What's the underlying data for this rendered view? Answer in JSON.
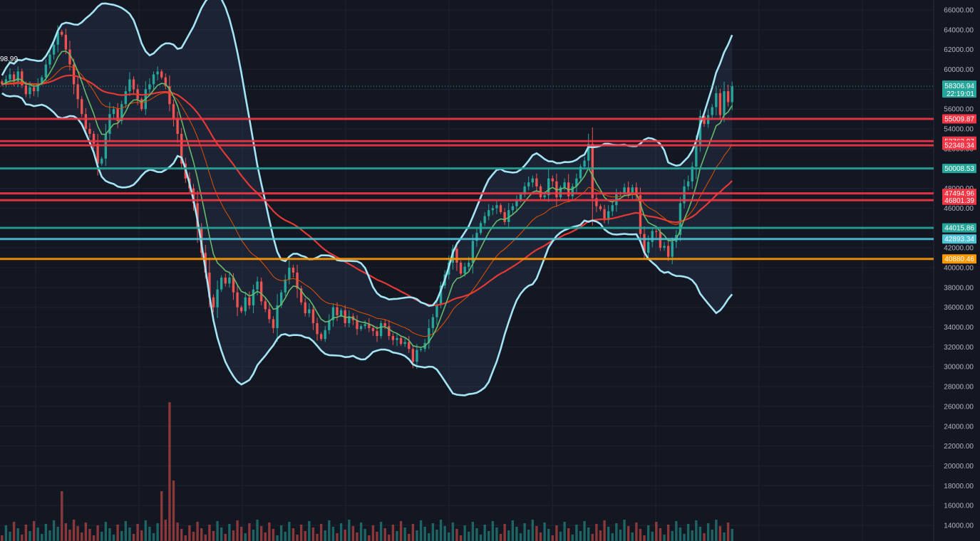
{
  "chart_data": {
    "type": "candlestick",
    "symbol_hint": "BTC",
    "y_axis": {
      "min": 12000,
      "max": 66800,
      "step": 2000
    },
    "y_tick_labels": [
      "66000.00",
      "64000.00",
      "62000.00",
      "60000.00",
      "58000.00",
      "56000.00",
      "54000.00",
      "52000.00",
      "50000.00",
      "48000.00",
      "46000.00",
      "44000.00",
      "42000.00",
      "40000.00",
      "38000.00",
      "36000.00",
      "34000.00",
      "32000.00",
      "30000.00",
      "28000.00",
      "26000.00",
      "24000.00",
      "22000.00",
      "20000.00",
      "18000.00",
      "16000.00",
      "14000.00"
    ],
    "current_price": {
      "value": 58306.94,
      "label": "58306.94",
      "countdown": "22:19:01",
      "color": "#26a69a"
    },
    "corner_label": "98.99",
    "horizontal_levels": [
      {
        "value": 55009.87,
        "label": "55009.87",
        "color": "#f23645"
      },
      {
        "value": 52763.97,
        "label": "52763.97",
        "color": "#f23645"
      },
      {
        "value": 52348.34,
        "label": "52348.34",
        "color": "#f23645"
      },
      {
        "value": 50008.53,
        "label": "50008.53",
        "color": "#26a69a"
      },
      {
        "value": 47494.96,
        "label": "47494.96",
        "color": "#f23645"
      },
      {
        "value": 46801.39,
        "label": "46801.39",
        "color": "#f23645"
      },
      {
        "value": 44015.86,
        "label": "44015.86",
        "color": "#26a69a"
      },
      {
        "value": 42893.34,
        "label": "42893.34",
        "color": "#4fc3d8"
      },
      {
        "value": 40880.46,
        "label": "40880.46",
        "color": "#ff9800"
      }
    ],
    "candles_close_approx": [
      58500,
      59000,
      59500,
      58800,
      59800,
      58400,
      57500,
      58200,
      57800,
      58600,
      59200,
      60500,
      61500,
      62500,
      63800,
      63500,
      62000,
      60500,
      58500,
      57000,
      55500,
      54000,
      53500,
      52500,
      50500,
      51000,
      53500,
      55500,
      56000,
      54800,
      56500,
      57800,
      59000,
      58000,
      57000,
      56000,
      58000,
      58500,
      59500,
      59800,
      59200,
      58300,
      56500,
      55000,
      53500,
      50500,
      49000,
      48000,
      46500,
      44000,
      41500,
      39500,
      37000,
      36000,
      37800,
      39000,
      38400,
      39000,
      37500,
      36000,
      35600,
      37000,
      36200,
      37800,
      38600,
      36600,
      35800,
      34800,
      33900,
      36200,
      37500,
      38800,
      40000,
      39500,
      37900,
      36500,
      35400,
      35800,
      34400,
      33300,
      32800,
      33700,
      34700,
      36000,
      35200,
      35700,
      34400,
      35100,
      34700,
      33800,
      34100,
      34300,
      33900,
      33600,
      33100,
      34400,
      34100,
      33100,
      32700,
      32900,
      32300,
      32500,
      31800,
      30500,
      31700,
      31800,
      32400,
      33900,
      35000,
      36300,
      38200,
      39300,
      40500,
      41900,
      40500,
      39400,
      40100,
      40500,
      42700,
      43500,
      44500,
      45200,
      45800,
      46000,
      46300,
      45600,
      44600,
      45800,
      46200,
      46800,
      47400,
      48200,
      48600,
      49000,
      48200,
      47100,
      47300,
      49000,
      48700,
      47100,
      48100,
      48600,
      47200,
      48200,
      49000,
      50200,
      50800,
      52500,
      47000,
      46200,
      45900,
      44800,
      45700,
      46300,
      47400,
      47500,
      48100,
      47400,
      48100,
      47300,
      43400,
      41500,
      42600,
      43700,
      43600,
      42000,
      42200,
      41100,
      42600,
      43300,
      46500,
      48200,
      48700,
      50200,
      52300,
      55300,
      54500,
      55400,
      56200,
      57600,
      55400,
      57800,
      56700,
      58300
    ],
    "series": [
      {
        "name": "",
        "type": "ema-fast",
        "color": "#66bb6a"
      },
      {
        "name": "",
        "type": "ema-mid",
        "color": "#e65100"
      },
      {
        "name": "",
        "type": "ema-slow",
        "color": "#e53935"
      },
      {
        "name": "",
        "type": "bollinger-bands",
        "color": "#a5e4f5"
      }
    ],
    "volume_panel": {
      "bar_colors": {
        "up": "#26a69a",
        "down": "#ef5350"
      }
    },
    "grid": true
  }
}
